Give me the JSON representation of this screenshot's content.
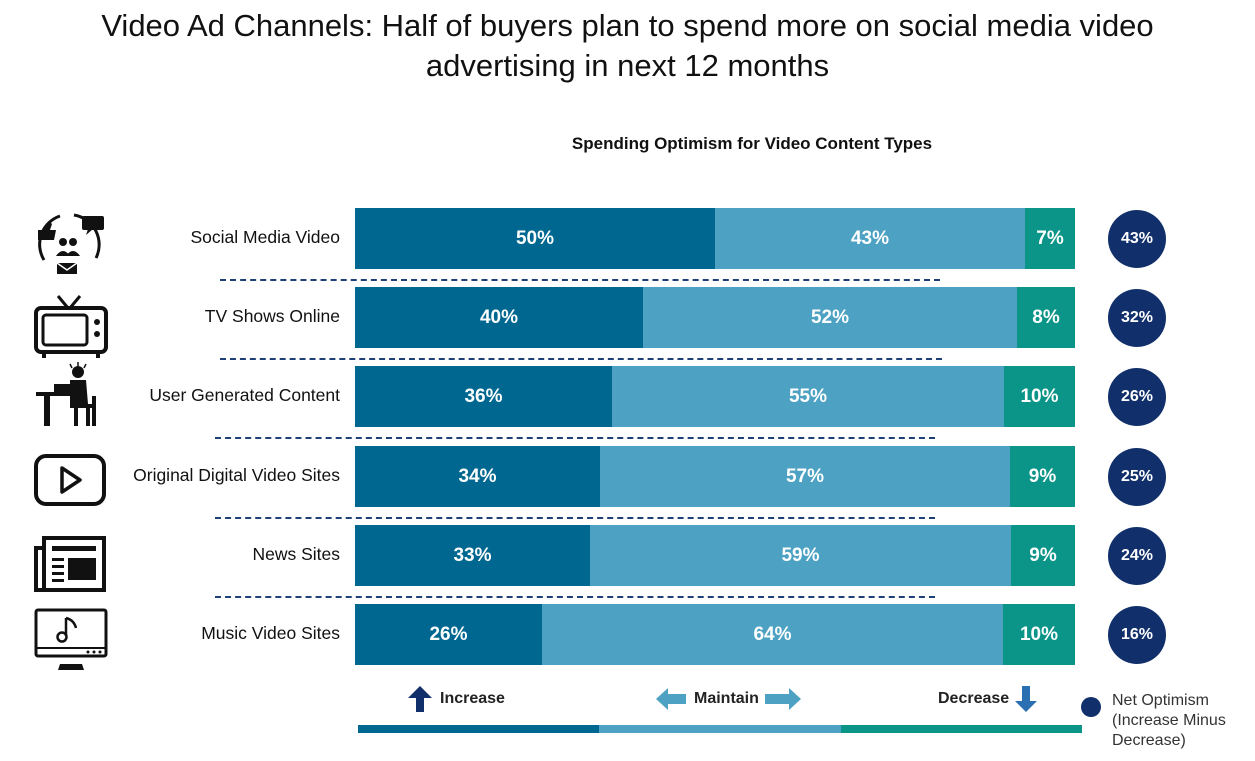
{
  "title_line1": "Video Ad Channels:  Half of buyers plan to spend more on social media video",
  "title_line2": "advertising in next 12 months",
  "colors": {
    "increase": "#006890",
    "maintain": "#4da2c3",
    "decrease": "#0b9488",
    "net": "#11306b"
  },
  "chart_data": {
    "type": "bar",
    "stacked": true,
    "orientation": "horizontal",
    "title": "Spending Optimism for Video Content Types",
    "categories": [
      "Social Media Video",
      "TV Shows Online",
      "User Generated Content",
      "Original Digital Video Sites",
      "News Sites",
      "Music Video Sites"
    ],
    "series": [
      {
        "name": "Increase",
        "values": [
          50,
          40,
          36,
          34,
          33,
          26
        ],
        "labels": [
          "50%",
          "40%",
          "36%",
          "34%",
          "33%",
          "26%"
        ]
      },
      {
        "name": "Maintain",
        "values": [
          43,
          52,
          55,
          57,
          59,
          64
        ],
        "labels": [
          "43%",
          "52%",
          "55%",
          "57%",
          "59%",
          "64%"
        ]
      },
      {
        "name": "Decrease",
        "values": [
          7,
          8,
          10,
          9,
          9,
          10
        ],
        "labels": [
          "7%",
          "8%",
          "10%",
          "9%",
          "9%",
          "10%"
        ]
      }
    ],
    "net_optimism": {
      "name": "Net Optimism (Increase Minus Decrease)",
      "values": [
        43,
        32,
        26,
        25,
        24,
        16
      ],
      "labels": [
        "43%",
        "32%",
        "26%",
        "25%",
        "24%",
        "16%"
      ]
    },
    "xlim": [
      0,
      100
    ]
  },
  "icons": [
    "social-media-icon",
    "tv-icon",
    "user-desk-icon",
    "video-player-icon",
    "newspaper-icon",
    "music-monitor-icon"
  ],
  "legend": {
    "increase": "Increase",
    "maintain": "Maintain",
    "decrease": "Decrease",
    "net_line1": "Net Optimism",
    "net_line2": "(Increase Minus",
    "net_line3": "Decrease)"
  }
}
